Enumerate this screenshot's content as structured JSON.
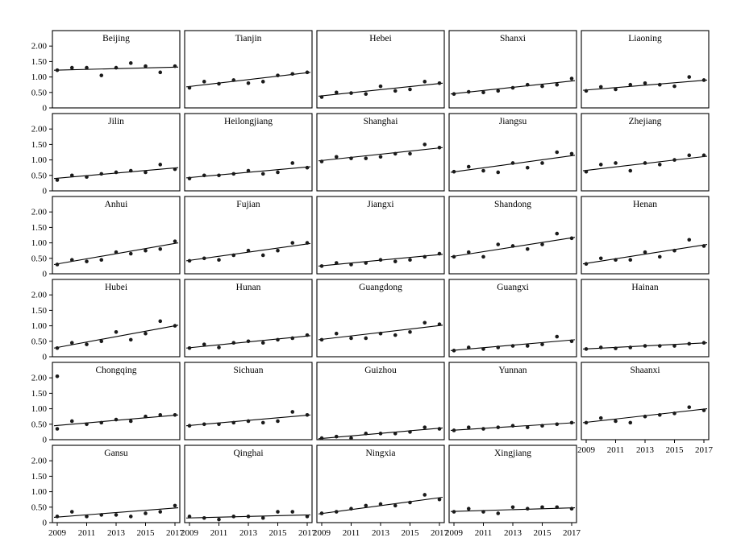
{
  "chart_data": {
    "type": "scatter",
    "title": "",
    "xlabel": "",
    "ylabel": "",
    "x": [
      2009,
      2010,
      2011,
      2012,
      2013,
      2014,
      2015,
      2016,
      2017
    ],
    "xticks": [
      2009,
      2011,
      2013,
      2015,
      2017
    ],
    "yticks": [
      0,
      0.5,
      1.0,
      1.5,
      2.0
    ],
    "ytick_labels": [
      "0",
      "0.50",
      "1.00",
      "1.50",
      "2.00"
    ],
    "ylim": [
      0,
      2.5
    ],
    "xlim": [
      2009,
      2017
    ],
    "grid": "off",
    "legend": "none",
    "fit": "linear trend line per panel",
    "point_color": "#1a1a1a",
    "line_color": "#000000",
    "panels": [
      {
        "title": "Beijing",
        "values": [
          1.22,
          1.3,
          1.3,
          1.05,
          1.3,
          1.45,
          1.35,
          1.15,
          1.35
        ],
        "trend": [
          1.22,
          1.32
        ],
        "show_x_axis": false
      },
      {
        "title": "Tianjin",
        "values": [
          0.65,
          0.85,
          0.78,
          0.9,
          0.8,
          0.85,
          1.05,
          1.1,
          1.15
        ],
        "trend": [
          0.68,
          1.15
        ],
        "show_x_axis": false
      },
      {
        "title": "Hebei",
        "values": [
          0.35,
          0.5,
          0.48,
          0.45,
          0.7,
          0.55,
          0.6,
          0.85,
          0.8
        ],
        "trend": [
          0.38,
          0.8
        ],
        "show_x_axis": false
      },
      {
        "title": "Shanxi",
        "values": [
          0.45,
          0.52,
          0.5,
          0.55,
          0.65,
          0.75,
          0.7,
          0.75,
          0.95
        ],
        "trend": [
          0.45,
          0.88
        ],
        "show_x_axis": false
      },
      {
        "title": "Liaoning",
        "values": [
          0.55,
          0.68,
          0.6,
          0.75,
          0.8,
          0.75,
          0.7,
          1.0,
          0.9
        ],
        "trend": [
          0.57,
          0.9
        ],
        "show_x_axis": false
      },
      {
        "title": "Jilin",
        "values": [
          0.35,
          0.5,
          0.45,
          0.55,
          0.6,
          0.65,
          0.6,
          0.85,
          0.7
        ],
        "trend": [
          0.4,
          0.75
        ],
        "show_x_axis": false
      },
      {
        "title": "Heilongjiang",
        "values": [
          0.4,
          0.5,
          0.5,
          0.55,
          0.65,
          0.55,
          0.6,
          0.9,
          0.75
        ],
        "trend": [
          0.42,
          0.78
        ],
        "show_x_axis": false
      },
      {
        "title": "Shanghai",
        "values": [
          0.95,
          1.1,
          1.05,
          1.05,
          1.1,
          1.2,
          1.2,
          1.5,
          1.4
        ],
        "trend": [
          0.97,
          1.4
        ],
        "show_x_axis": false
      },
      {
        "title": "Jiangsu",
        "values": [
          0.62,
          0.78,
          0.65,
          0.6,
          0.9,
          0.75,
          0.9,
          1.25,
          1.2
        ],
        "trend": [
          0.6,
          1.15
        ],
        "show_x_axis": false
      },
      {
        "title": "Zhejiang",
        "values": [
          0.62,
          0.85,
          0.9,
          0.65,
          0.9,
          0.85,
          1.0,
          1.15,
          1.15
        ],
        "trend": [
          0.65,
          1.12
        ],
        "show_x_axis": false
      },
      {
        "title": "Anhui",
        "values": [
          0.3,
          0.45,
          0.4,
          0.45,
          0.7,
          0.65,
          0.75,
          0.8,
          1.05
        ],
        "trend": [
          0.3,
          1.0
        ],
        "show_x_axis": false
      },
      {
        "title": "Fujian",
        "values": [
          0.42,
          0.5,
          0.45,
          0.6,
          0.75,
          0.6,
          0.75,
          1.0,
          1.0
        ],
        "trend": [
          0.42,
          0.98
        ],
        "show_x_axis": false
      },
      {
        "title": "Jiangxi",
        "values": [
          0.25,
          0.35,
          0.3,
          0.35,
          0.45,
          0.4,
          0.45,
          0.55,
          0.65
        ],
        "trend": [
          0.25,
          0.63
        ],
        "show_x_axis": false
      },
      {
        "title": "Shandong",
        "values": [
          0.55,
          0.7,
          0.55,
          0.95,
          0.9,
          0.8,
          0.95,
          1.3,
          1.15
        ],
        "trend": [
          0.55,
          1.18
        ],
        "show_x_axis": false
      },
      {
        "title": "Henan",
        "values": [
          0.32,
          0.5,
          0.45,
          0.45,
          0.7,
          0.55,
          0.75,
          1.1,
          0.9
        ],
        "trend": [
          0.32,
          0.95
        ],
        "show_x_axis": false
      },
      {
        "title": "Hubei",
        "values": [
          0.28,
          0.45,
          0.4,
          0.5,
          0.8,
          0.55,
          0.75,
          1.15,
          1.0
        ],
        "trend": [
          0.28,
          1.02
        ],
        "show_x_axis": false
      },
      {
        "title": "Hunan",
        "values": [
          0.28,
          0.4,
          0.3,
          0.45,
          0.5,
          0.45,
          0.55,
          0.6,
          0.7
        ],
        "trend": [
          0.28,
          0.68
        ],
        "show_x_axis": false
      },
      {
        "title": "Guangdong",
        "values": [
          0.55,
          0.75,
          0.6,
          0.6,
          0.75,
          0.7,
          0.8,
          1.1,
          1.05
        ],
        "trend": [
          0.55,
          1.02
        ],
        "show_x_axis": false
      },
      {
        "title": "Guangxi",
        "values": [
          0.2,
          0.3,
          0.25,
          0.3,
          0.35,
          0.35,
          0.4,
          0.65,
          0.5
        ],
        "trend": [
          0.2,
          0.55
        ],
        "show_x_axis": false
      },
      {
        "title": "Hainan",
        "values": [
          0.25,
          0.3,
          0.27,
          0.3,
          0.35,
          0.35,
          0.35,
          0.42,
          0.45
        ],
        "trend": [
          0.25,
          0.45
        ],
        "show_x_axis": false
      },
      {
        "title": "Chongqing",
        "values": [
          0.35,
          0.6,
          0.5,
          0.55,
          0.65,
          0.6,
          0.75,
          0.8,
          0.8
        ],
        "trend": [
          0.45,
          0.8
        ],
        "outliers": [
          [
            2009,
            2.05
          ]
        ],
        "show_x_axis": false
      },
      {
        "title": "Sichuan",
        "values": [
          0.45,
          0.5,
          0.5,
          0.55,
          0.6,
          0.55,
          0.6,
          0.9,
          0.8
        ],
        "trend": [
          0.45,
          0.8
        ],
        "show_x_axis": false
      },
      {
        "title": "Guizhou",
        "values": [
          0.05,
          0.1,
          0.05,
          0.2,
          0.2,
          0.2,
          0.25,
          0.4,
          0.35
        ],
        "trend": [
          0.03,
          0.38
        ],
        "show_x_axis": false
      },
      {
        "title": "Yunnan",
        "values": [
          0.3,
          0.4,
          0.35,
          0.4,
          0.45,
          0.4,
          0.45,
          0.5,
          0.55
        ],
        "trend": [
          0.3,
          0.55
        ],
        "show_x_axis": false
      },
      {
        "title": "Shaanxi",
        "values": [
          0.55,
          0.7,
          0.6,
          0.55,
          0.75,
          0.8,
          0.85,
          1.05,
          0.95
        ],
        "trend": [
          0.55,
          1.0
        ],
        "show_x_axis": true
      },
      {
        "title": "Gansu",
        "values": [
          0.2,
          0.35,
          0.2,
          0.25,
          0.25,
          0.2,
          0.3,
          0.35,
          0.55
        ],
        "trend": [
          0.17,
          0.48
        ],
        "show_x_axis": true
      },
      {
        "title": "Qinghai",
        "values": [
          0.2,
          0.15,
          0.1,
          0.2,
          0.2,
          0.15,
          0.35,
          0.35,
          0.2
        ],
        "trend": [
          0.15,
          0.25
        ],
        "show_x_axis": true
      },
      {
        "title": "Ningxia",
        "values": [
          0.3,
          0.35,
          0.45,
          0.55,
          0.6,
          0.55,
          0.65,
          0.9,
          0.75
        ],
        "trend": [
          0.28,
          0.82
        ],
        "show_x_axis": true
      },
      {
        "title": "Xingjiang",
        "values": [
          0.35,
          0.45,
          0.35,
          0.3,
          0.5,
          0.45,
          0.5,
          0.5,
          0.45
        ],
        "trend": [
          0.36,
          0.48
        ],
        "show_x_axis": true
      }
    ]
  }
}
